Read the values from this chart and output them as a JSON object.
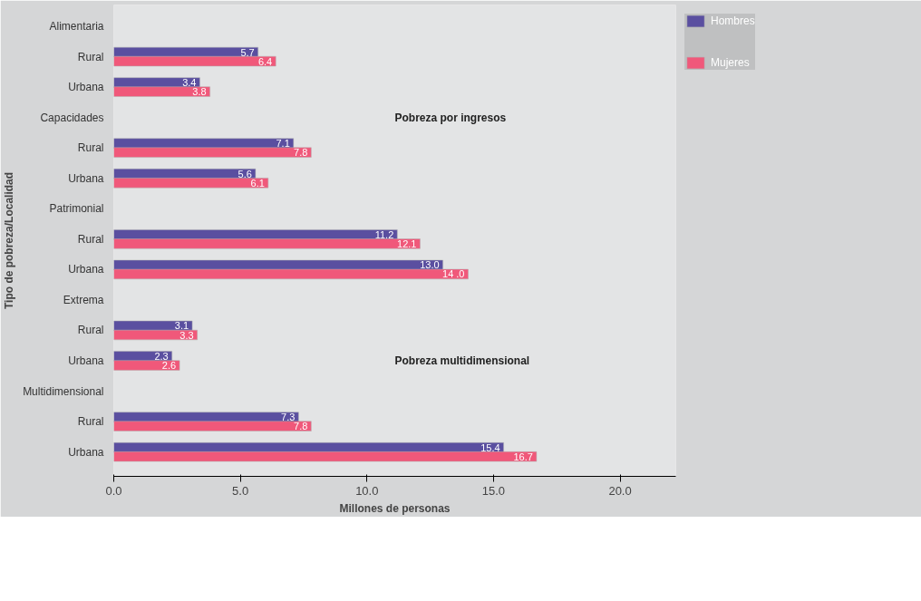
{
  "chart_data": {
    "type": "bar",
    "orientation": "horizontal",
    "xlabel": "Millones de personas",
    "ylabel": "Tipo de pobreza/Localidad",
    "categories": [
      "Alimentaria",
      "Rural",
      "Urbana",
      "Capacidades",
      "Rural",
      "Urbana",
      "Patrimonial",
      "Rural",
      "Urbana",
      "Extrema",
      "Rural",
      "Urbana",
      "Multidimensional",
      "Rural",
      "Urbana"
    ],
    "series": [
      {
        "name": "Hombres",
        "color": "#5a4fa0",
        "values": [
          null,
          5.7,
          3.4,
          null,
          7.1,
          5.6,
          null,
          11.2,
          13.0,
          null,
          3.1,
          2.3,
          null,
          7.3,
          15.4
        ],
        "value_labels": [
          null,
          "5.7",
          "3.4",
          null,
          "7.1",
          "5.6",
          null,
          "11.2",
          "13.0",
          null,
          "3.1",
          "2.3",
          null,
          "7.3",
          "15.4"
        ]
      },
      {
        "name": "Mujeres",
        "color": "#f0587a",
        "values": [
          null,
          6.4,
          3.8,
          null,
          7.8,
          6.1,
          null,
          12.1,
          14.0,
          null,
          3.3,
          2.6,
          null,
          7.8,
          16.7
        ],
        "value_labels": [
          null,
          "6.4",
          "3.8",
          null,
          "7.8",
          "6.1",
          null,
          "12.1",
          "14 .0",
          null,
          "3.3",
          "2.6",
          null,
          "7.8",
          "16.7"
        ]
      }
    ],
    "xlim": [
      0,
      22.2
    ],
    "xticks": [
      {
        "value": 0,
        "label": "0.0"
      },
      {
        "value": 5,
        "label": "5.0"
      },
      {
        "value": 10,
        "label": "10.0"
      },
      {
        "value": 15,
        "label": "15.0"
      },
      {
        "value": 20,
        "label": "20.0"
      }
    ],
    "annotations": [
      "Pobreza por ingresos",
      "Pobreza multidimensional"
    ],
    "legend": "top right"
  }
}
